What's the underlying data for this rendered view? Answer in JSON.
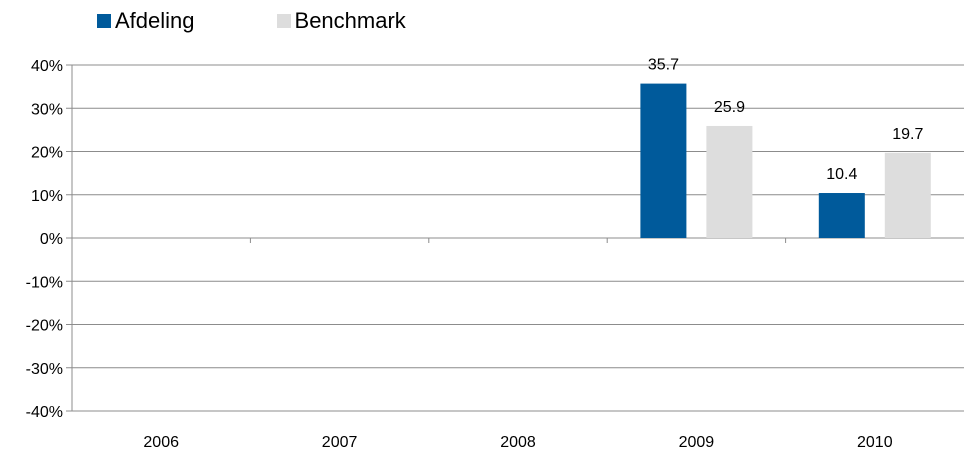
{
  "chart_data": {
    "type": "bar",
    "categories": [
      "2006",
      "2007",
      "2008",
      "2009",
      "2010"
    ],
    "series": [
      {
        "name": "Afdeling",
        "color": "#005A9B",
        "values": [
          null,
          null,
          null,
          35.7,
          10.4
        ]
      },
      {
        "name": "Benchmark",
        "color": "#DDDDDD",
        "values": [
          null,
          null,
          null,
          25.9,
          19.7
        ]
      }
    ],
    "data_labels": [
      [
        null,
        null,
        null,
        "35.7",
        "10.4"
      ],
      [
        null,
        null,
        null,
        "25.9",
        "19.7"
      ]
    ],
    "yticks": [
      40,
      30,
      20,
      10,
      0,
      -10,
      -20,
      -30,
      -40
    ],
    "ytick_labels": [
      "40%",
      "30%",
      "20%",
      "10%",
      "0%",
      "-10%",
      "-20%",
      "-30%",
      "-40%"
    ],
    "ylim": [
      -40,
      40
    ],
    "grid": true,
    "legend_position": "top-left",
    "title": "",
    "xlabel": "",
    "ylabel": ""
  }
}
